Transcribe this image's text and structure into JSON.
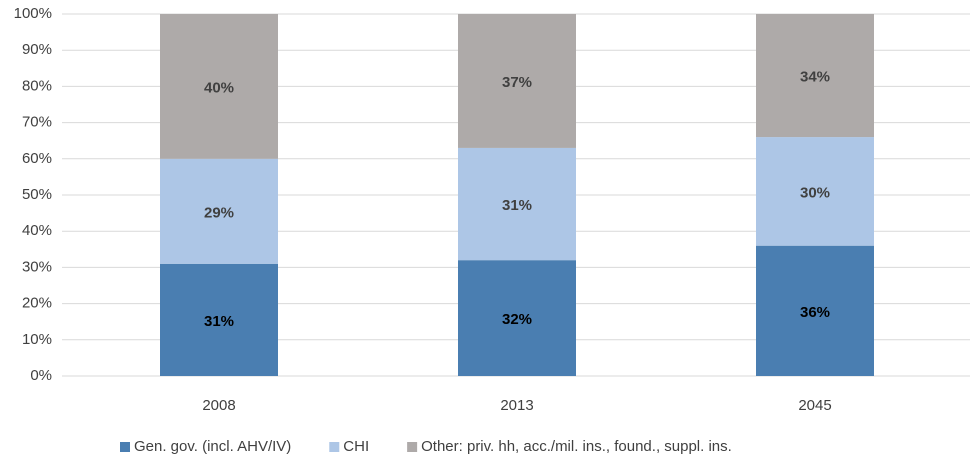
{
  "chart_data": {
    "type": "stacked_bar",
    "categories": [
      "2008",
      "2013",
      "2045"
    ],
    "series": [
      {
        "name": "Gen. gov. (incl. AHV/IV)",
        "color": "#4a7eb1",
        "values": [
          31,
          32,
          36
        ],
        "value_labels": [
          "31%",
          "32%",
          "36%"
        ]
      },
      {
        "name": "CHI",
        "color": "#adc6e6",
        "values": [
          29,
          31,
          30
        ],
        "value_labels": [
          "29%",
          "31%",
          "30%"
        ]
      },
      {
        "name": "Other: priv. hh, acc./mil. ins., found., suppl. ins.",
        "color": "#aeaaa9",
        "values": [
          40,
          37,
          34
        ],
        "value_labels": [
          "40%",
          "37%",
          "34%"
        ]
      }
    ],
    "ylim": [
      0,
      100
    ],
    "yticks": [
      {
        "value": 0,
        "label": "0%"
      },
      {
        "value": 10,
        "label": "10%"
      },
      {
        "value": 20,
        "label": "20%"
      },
      {
        "value": 30,
        "label": "30%"
      },
      {
        "value": 40,
        "label": "40%"
      },
      {
        "value": 50,
        "label": "50%"
      },
      {
        "value": 60,
        "label": "60%"
      },
      {
        "value": 70,
        "label": "70%"
      },
      {
        "value": 80,
        "label": "80%"
      },
      {
        "value": 90,
        "label": "90%"
      },
      {
        "value": 100,
        "label": "100%"
      }
    ],
    "grid": true,
    "legend": "bottom"
  }
}
